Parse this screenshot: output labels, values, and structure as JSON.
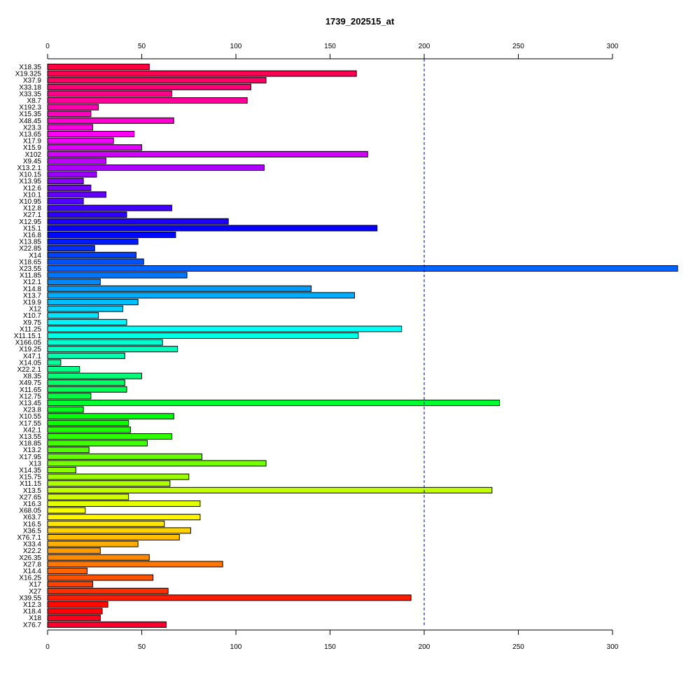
{
  "chart_data": {
    "type": "bar",
    "orientation": "horizontal",
    "title": "1739_202515_at",
    "xlabel": "",
    "ylabel": "",
    "xlim": [
      0,
      300
    ],
    "x_ticks": [
      0,
      50,
      100,
      150,
      200,
      250,
      300
    ],
    "x_ticks_top": true,
    "x_ticks_bottom": true,
    "reference_line": {
      "value": 200,
      "style": "dashed",
      "color": "#00008B"
    },
    "grid": false,
    "legend": "none",
    "categories": [
      "X18.35",
      "X19.325",
      "X37.9",
      "X33.18",
      "X33.35",
      "X8.7",
      "X192.3",
      "X15.35",
      "X48.45",
      "X23.3",
      "X13.65",
      "X17.9",
      "X15.9",
      "X102",
      "X9.45",
      "X13.2.1",
      "X10.15",
      "X13.95",
      "X12.6",
      "X10.1",
      "X10.95",
      "X12.8",
      "X27.1",
      "X12.95",
      "X15.1",
      "X16.8",
      "X13.85",
      "X22.85",
      "X14",
      "X18.65",
      "X23.55",
      "X11.85",
      "X12.1",
      "X14.8",
      "X13.7",
      "X19.9",
      "X12",
      "X10.7",
      "X9.75",
      "X11.25",
      "X11.15.1",
      "X166.05",
      "X19.25",
      "X47.1",
      "X14.05",
      "X22.2.1",
      "X8.35",
      "X49.75",
      "X11.65",
      "X12.75",
      "X13.45",
      "X23.8",
      "X10.55",
      "X17.55",
      "X42.1",
      "X13.55",
      "X18.85",
      "X13.2",
      "X17.95",
      "X13",
      "X14.35",
      "X15.75",
      "X11.15",
      "X13.5",
      "X27.65",
      "X16.3",
      "X68.05",
      "X63.7",
      "X16.5",
      "X36.5",
      "X76.7.1",
      "X33.4",
      "X22.2",
      "X26.35",
      "X27.8",
      "X14.4",
      "X16.25",
      "X17",
      "X27",
      "X39.55",
      "X12.3",
      "X18.4",
      "X18",
      "X76.7"
    ],
    "values": [
      54,
      164,
      116,
      108,
      66,
      106,
      27,
      23,
      67,
      24,
      46,
      35,
      50,
      170,
      31,
      115,
      26,
      19,
      23,
      31,
      19,
      66,
      42,
      96,
      175,
      68,
      48,
      25,
      47,
      51,
      335,
      74,
      28,
      140,
      163,
      48,
      40,
      27,
      42,
      188,
      165,
      61,
      69,
      41,
      7,
      17,
      50,
      41,
      42,
      23,
      240,
      19,
      67,
      43,
      44,
      66,
      53,
      22,
      82,
      116,
      15,
      75,
      65,
      236,
      43,
      81,
      20,
      81,
      62,
      76,
      70,
      48,
      28,
      54,
      93,
      21,
      56,
      24,
      64,
      193,
      32,
      29,
      28,
      63
    ]
  }
}
